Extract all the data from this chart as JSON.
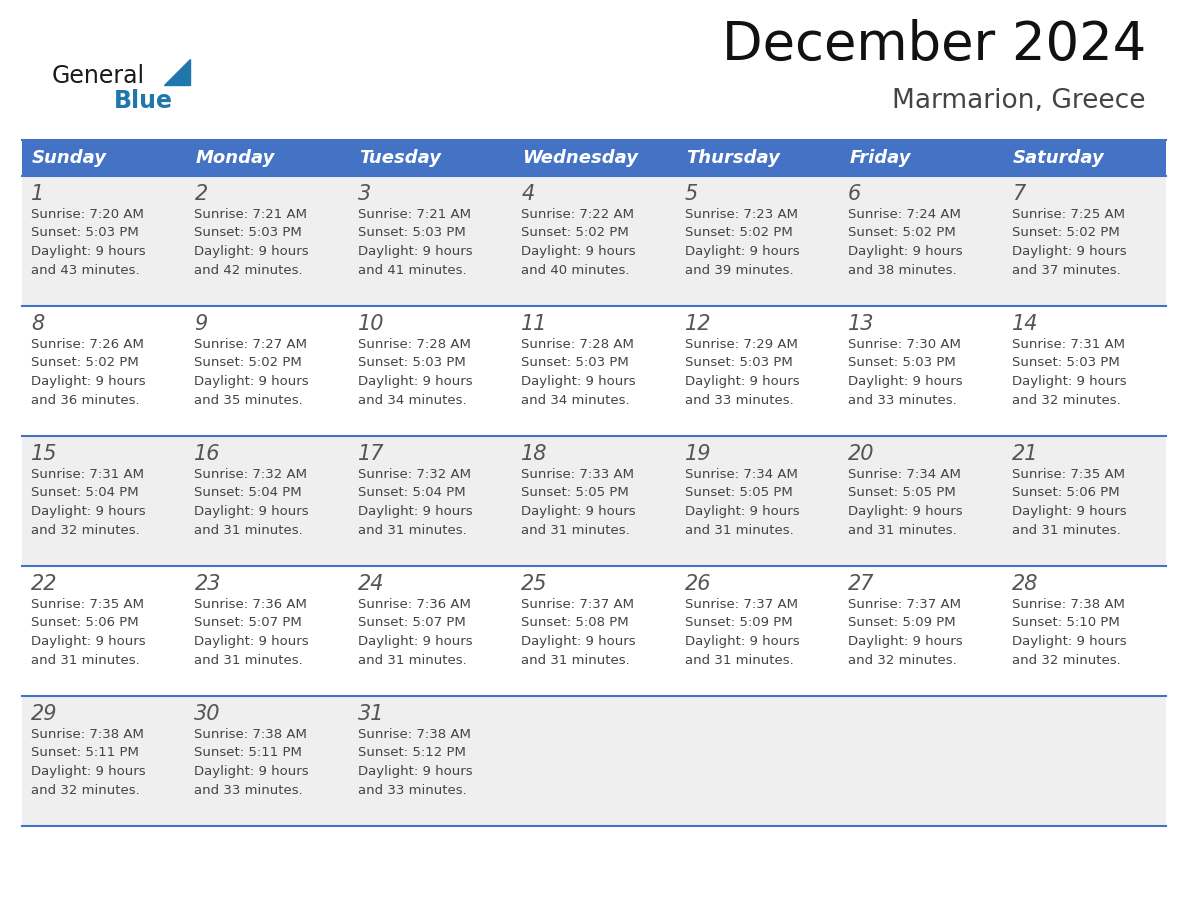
{
  "title": "December 2024",
  "subtitle": "Marmarion, Greece",
  "days_of_week": [
    "Sunday",
    "Monday",
    "Tuesday",
    "Wednesday",
    "Thursday",
    "Friday",
    "Saturday"
  ],
  "header_bg": "#4472C4",
  "header_text": "#FFFFFF",
  "cell_bg_odd": "#EFEFEF",
  "cell_bg_even": "#FFFFFF",
  "line_color": "#4472C4",
  "day_num_color": "#555555",
  "text_color": "#444444",
  "calendar": [
    [
      {
        "day": 1,
        "sunrise": "7:20 AM",
        "sunset": "5:03 PM",
        "daylight": "9 hours",
        "daylight2": "and 43 minutes."
      },
      {
        "day": 2,
        "sunrise": "7:21 AM",
        "sunset": "5:03 PM",
        "daylight": "9 hours",
        "daylight2": "and 42 minutes."
      },
      {
        "day": 3,
        "sunrise": "7:21 AM",
        "sunset": "5:03 PM",
        "daylight": "9 hours",
        "daylight2": "and 41 minutes."
      },
      {
        "day": 4,
        "sunrise": "7:22 AM",
        "sunset": "5:02 PM",
        "daylight": "9 hours",
        "daylight2": "and 40 minutes."
      },
      {
        "day": 5,
        "sunrise": "7:23 AM",
        "sunset": "5:02 PM",
        "daylight": "9 hours",
        "daylight2": "and 39 minutes."
      },
      {
        "day": 6,
        "sunrise": "7:24 AM",
        "sunset": "5:02 PM",
        "daylight": "9 hours",
        "daylight2": "and 38 minutes."
      },
      {
        "day": 7,
        "sunrise": "7:25 AM",
        "sunset": "5:02 PM",
        "daylight": "9 hours",
        "daylight2": "and 37 minutes."
      }
    ],
    [
      {
        "day": 8,
        "sunrise": "7:26 AM",
        "sunset": "5:02 PM",
        "daylight": "9 hours",
        "daylight2": "and 36 minutes."
      },
      {
        "day": 9,
        "sunrise": "7:27 AM",
        "sunset": "5:02 PM",
        "daylight": "9 hours",
        "daylight2": "and 35 minutes."
      },
      {
        "day": 10,
        "sunrise": "7:28 AM",
        "sunset": "5:03 PM",
        "daylight": "9 hours",
        "daylight2": "and 34 minutes."
      },
      {
        "day": 11,
        "sunrise": "7:28 AM",
        "sunset": "5:03 PM",
        "daylight": "9 hours",
        "daylight2": "and 34 minutes."
      },
      {
        "day": 12,
        "sunrise": "7:29 AM",
        "sunset": "5:03 PM",
        "daylight": "9 hours",
        "daylight2": "and 33 minutes."
      },
      {
        "day": 13,
        "sunrise": "7:30 AM",
        "sunset": "5:03 PM",
        "daylight": "9 hours",
        "daylight2": "and 33 minutes."
      },
      {
        "day": 14,
        "sunrise": "7:31 AM",
        "sunset": "5:03 PM",
        "daylight": "9 hours",
        "daylight2": "and 32 minutes."
      }
    ],
    [
      {
        "day": 15,
        "sunrise": "7:31 AM",
        "sunset": "5:04 PM",
        "daylight": "9 hours",
        "daylight2": "and 32 minutes."
      },
      {
        "day": 16,
        "sunrise": "7:32 AM",
        "sunset": "5:04 PM",
        "daylight": "9 hours",
        "daylight2": "and 31 minutes."
      },
      {
        "day": 17,
        "sunrise": "7:32 AM",
        "sunset": "5:04 PM",
        "daylight": "9 hours",
        "daylight2": "and 31 minutes."
      },
      {
        "day": 18,
        "sunrise": "7:33 AM",
        "sunset": "5:05 PM",
        "daylight": "9 hours",
        "daylight2": "and 31 minutes."
      },
      {
        "day": 19,
        "sunrise": "7:34 AM",
        "sunset": "5:05 PM",
        "daylight": "9 hours",
        "daylight2": "and 31 minutes."
      },
      {
        "day": 20,
        "sunrise": "7:34 AM",
        "sunset": "5:05 PM",
        "daylight": "9 hours",
        "daylight2": "and 31 minutes."
      },
      {
        "day": 21,
        "sunrise": "7:35 AM",
        "sunset": "5:06 PM",
        "daylight": "9 hours",
        "daylight2": "and 31 minutes."
      }
    ],
    [
      {
        "day": 22,
        "sunrise": "7:35 AM",
        "sunset": "5:06 PM",
        "daylight": "9 hours",
        "daylight2": "and 31 minutes."
      },
      {
        "day": 23,
        "sunrise": "7:36 AM",
        "sunset": "5:07 PM",
        "daylight": "9 hours",
        "daylight2": "and 31 minutes."
      },
      {
        "day": 24,
        "sunrise": "7:36 AM",
        "sunset": "5:07 PM",
        "daylight": "9 hours",
        "daylight2": "and 31 minutes."
      },
      {
        "day": 25,
        "sunrise": "7:37 AM",
        "sunset": "5:08 PM",
        "daylight": "9 hours",
        "daylight2": "and 31 minutes."
      },
      {
        "day": 26,
        "sunrise": "7:37 AM",
        "sunset": "5:09 PM",
        "daylight": "9 hours",
        "daylight2": "and 31 minutes."
      },
      {
        "day": 27,
        "sunrise": "7:37 AM",
        "sunset": "5:09 PM",
        "daylight": "9 hours",
        "daylight2": "and 32 minutes."
      },
      {
        "day": 28,
        "sunrise": "7:38 AM",
        "sunset": "5:10 PM",
        "daylight": "9 hours",
        "daylight2": "and 32 minutes."
      }
    ],
    [
      {
        "day": 29,
        "sunrise": "7:38 AM",
        "sunset": "5:11 PM",
        "daylight": "9 hours",
        "daylight2": "and 32 minutes."
      },
      {
        "day": 30,
        "sunrise": "7:38 AM",
        "sunset": "5:11 PM",
        "daylight": "9 hours",
        "daylight2": "and 33 minutes."
      },
      {
        "day": 31,
        "sunrise": "7:38 AM",
        "sunset": "5:12 PM",
        "daylight": "9 hours",
        "daylight2": "and 33 minutes."
      },
      null,
      null,
      null,
      null
    ]
  ],
  "logo_general_color": "#1a1a1a",
  "logo_blue_color": "#2176AE",
  "logo_triangle_color": "#2176AE",
  "fig_width": 11.88,
  "fig_height": 9.18,
  "dpi": 100
}
